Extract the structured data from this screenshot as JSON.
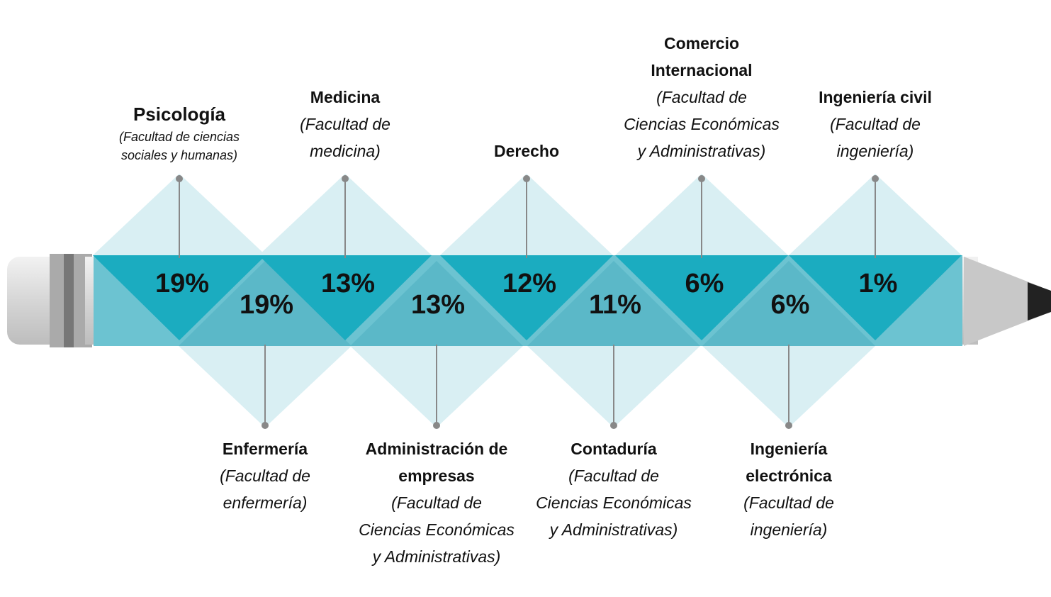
{
  "top_items": [
    {
      "name": "Psicología",
      "faculty": "(Facultad de ciencias sociales y humanas)",
      "percent": "19%"
    },
    {
      "name": "Medicina",
      "faculty": "(Facultad de medicina)",
      "percent": "13%"
    },
    {
      "name": "Derecho",
      "percent": "12%"
    },
    {
      "name": "Comercio Internacional",
      "faculty": "(Facultad de Ciencias Económicas y Administrativas)",
      "percent": "6%"
    },
    {
      "name": "Ingeniería civil",
      "faculty": "(Facultad de ingeniería)",
      "percent": "1%"
    }
  ],
  "bottom_items": [
    {
      "name": "Enfermería",
      "faculty": "(Facultad de enfermería)",
      "percent": "19%"
    },
    {
      "name": "Administración de empresas",
      "faculty": "(Facultad de Ciencias Económicas y Administrativas)",
      "percent": "13%"
    },
    {
      "name": "Contaduría",
      "faculty": "(Facultad de Ciencias Económicas y Administrativas)",
      "percent": "11%"
    },
    {
      "name": "Ingeniería electrónica",
      "faculty": "(Facultad de ingeniería)",
      "percent": "6%"
    }
  ]
}
